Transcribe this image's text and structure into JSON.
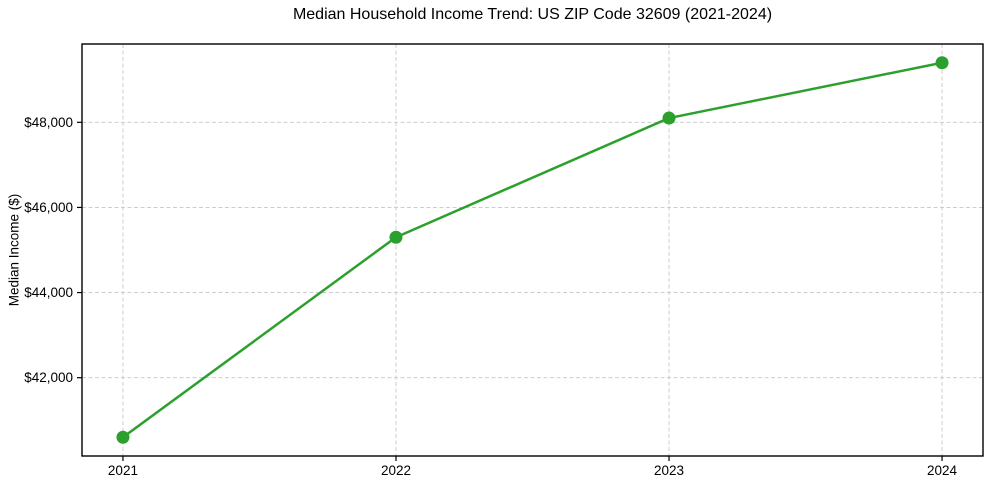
{
  "chart_data": {
    "type": "line",
    "title": "Median Household Income Trend: US ZIP Code 32609 (2021-2024)",
    "xlabel": "",
    "ylabel": "Median Income ($)",
    "x": [
      2021,
      2022,
      2023,
      2024
    ],
    "xtick_labels": [
      "2021",
      "2022",
      "2023",
      "2024"
    ],
    "series": [
      {
        "name": "Median Household Income",
        "values": [
          40600,
          45300,
          48100,
          49400
        ],
        "color": "#2ca02c",
        "marker": "circle"
      }
    ],
    "yticks": [
      42000,
      44000,
      46000,
      48000
    ],
    "ytick_labels": [
      "$42,000",
      "$44,000",
      "$46,000",
      "$48,000"
    ],
    "xlim": [
      2020.85,
      2024.15
    ],
    "ylim": [
      40160,
      49840
    ],
    "grid": true,
    "grid_style": "dashed",
    "legend_position": "none",
    "colors": {
      "line": "#2ca02c",
      "grid": "#cdcdcd",
      "spine": "#000000",
      "tick": "#000000",
      "text": "#000000",
      "background": "#ffffff"
    }
  }
}
